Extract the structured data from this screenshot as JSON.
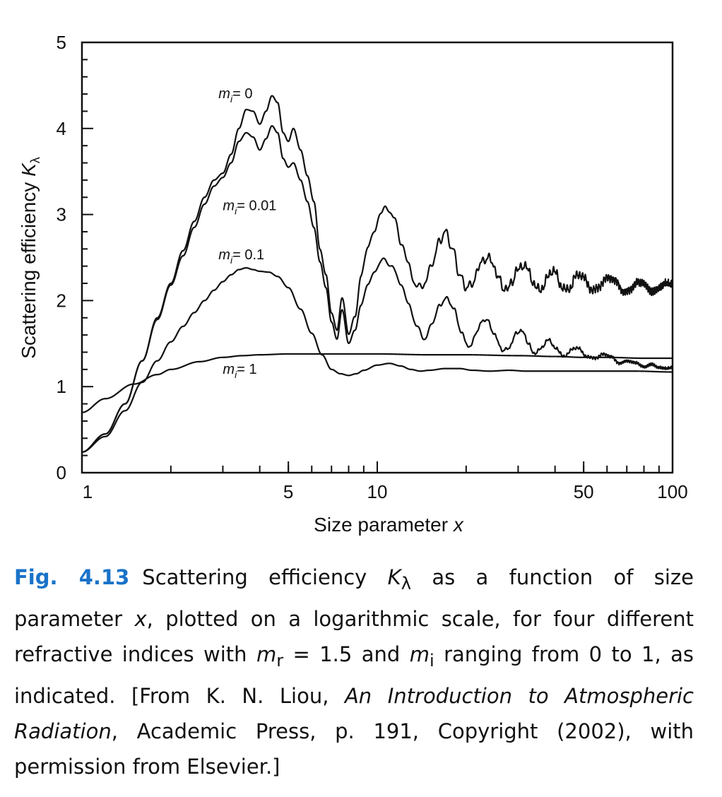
{
  "chart_data": {
    "type": "line",
    "xlabel_text": "Size parameter ",
    "xlabel_var": "x",
    "ylabel_text": "Scattering efficiency ",
    "ylabel_var": "K",
    "ylabel_sub": "λ",
    "xscale": "log",
    "xlim": [
      1,
      100
    ],
    "ylim": [
      0,
      5
    ],
    "x_ticks": [
      {
        "value": 1,
        "label": "1"
      },
      {
        "value": 5,
        "label": "5"
      },
      {
        "value": 10,
        "label": "10"
      },
      {
        "value": 50,
        "label": "50"
      },
      {
        "value": 100,
        "label": "100"
      }
    ],
    "y_ticks": [
      {
        "value": 0,
        "label": "0"
      },
      {
        "value": 1,
        "label": "1"
      },
      {
        "value": 2,
        "label": "2"
      },
      {
        "value": 3,
        "label": "3"
      },
      {
        "value": 4,
        "label": "4"
      },
      {
        "value": 5,
        "label": "5"
      }
    ],
    "grid": false,
    "legend": "none",
    "series": [
      {
        "label_var": "m",
        "label_sub": "i",
        "label_value": "= 0",
        "label_at": [
          2.9,
          4.35
        ],
        "points": [
          [
            1,
            0.24
          ],
          [
            1.2,
            0.45
          ],
          [
            1.4,
            0.8
          ],
          [
            1.6,
            1.3
          ],
          [
            1.8,
            1.8
          ],
          [
            2,
            2.2
          ],
          [
            2.2,
            2.58
          ],
          [
            2.4,
            2.92
          ],
          [
            2.6,
            3.2
          ],
          [
            2.8,
            3.4
          ],
          [
            3,
            3.48
          ],
          [
            3.2,
            3.7
          ],
          [
            3.4,
            4.0
          ],
          [
            3.6,
            4.22
          ],
          [
            3.8,
            4.2
          ],
          [
            4.0,
            4.05
          ],
          [
            4.2,
            4.2
          ],
          [
            4.4,
            4.38
          ],
          [
            4.6,
            4.3
          ],
          [
            4.8,
            3.95
          ],
          [
            5.0,
            3.85
          ],
          [
            5.2,
            4.0
          ],
          [
            5.5,
            3.75
          ],
          [
            5.8,
            3.45
          ],
          [
            6.1,
            3.15
          ],
          [
            6.4,
            2.6
          ],
          [
            6.7,
            2.3
          ],
          [
            7.0,
            1.85
          ],
          [
            7.3,
            1.65
          ],
          [
            7.6,
            2.05
          ],
          [
            8.0,
            1.6
          ],
          [
            8.4,
            1.8
          ],
          [
            8.8,
            2.3
          ],
          [
            9.3,
            2.6
          ],
          [
            9.8,
            2.85
          ],
          [
            10.3,
            3.0
          ],
          [
            10.8,
            3.1
          ],
          [
            11.4,
            2.95
          ],
          [
            12.0,
            2.7
          ],
          [
            12.8,
            2.4
          ],
          [
            13.6,
            2.15
          ],
          [
            14.5,
            2.2
          ],
          [
            15.4,
            2.45
          ],
          [
            16.3,
            2.7
          ],
          [
            17.0,
            2.8
          ],
          [
            18.0,
            2.6
          ],
          [
            19.0,
            2.3
          ],
          [
            20.0,
            2.15
          ],
          [
            21.0,
            2.2
          ],
          [
            22.5,
            2.45
          ],
          [
            24,
            2.5
          ],
          [
            25.5,
            2.3
          ],
          [
            27,
            2.12
          ],
          [
            28.5,
            2.2
          ],
          [
            30,
            2.38
          ],
          [
            32,
            2.4
          ],
          [
            34,
            2.18
          ],
          [
            36,
            2.12
          ],
          [
            38,
            2.3
          ],
          [
            40,
            2.35
          ],
          [
            42,
            2.15
          ],
          [
            45,
            2.13
          ],
          [
            47,
            2.3
          ],
          [
            50,
            2.28
          ],
          [
            53,
            2.12
          ],
          [
            56,
            2.15
          ],
          [
            60,
            2.27
          ],
          [
            64,
            2.24
          ],
          [
            68,
            2.1
          ],
          [
            72,
            2.13
          ],
          [
            76,
            2.22
          ],
          [
            80,
            2.2
          ],
          [
            85,
            2.1
          ],
          [
            90,
            2.14
          ],
          [
            95,
            2.2
          ],
          [
            100,
            2.18
          ]
        ],
        "ripple": 0.035
      },
      {
        "label_var": "m",
        "label_sub": "i",
        "label_value": "= 0.01",
        "label_at": [
          3.0,
          3.05
        ],
        "points": [
          [
            1,
            0.24
          ],
          [
            1.2,
            0.45
          ],
          [
            1.4,
            0.8
          ],
          [
            1.6,
            1.3
          ],
          [
            1.8,
            1.78
          ],
          [
            2,
            2.18
          ],
          [
            2.2,
            2.52
          ],
          [
            2.4,
            2.85
          ],
          [
            2.6,
            3.12
          ],
          [
            2.8,
            3.33
          ],
          [
            3,
            3.43
          ],
          [
            3.2,
            3.6
          ],
          [
            3.4,
            3.85
          ],
          [
            3.6,
            3.95
          ],
          [
            3.8,
            3.9
          ],
          [
            4.0,
            3.75
          ],
          [
            4.2,
            3.88
          ],
          [
            4.4,
            4.03
          ],
          [
            4.6,
            3.95
          ],
          [
            4.8,
            3.65
          ],
          [
            5.0,
            3.55
          ],
          [
            5.2,
            3.6
          ],
          [
            5.5,
            3.4
          ],
          [
            5.8,
            3.15
          ],
          [
            6.1,
            2.85
          ],
          [
            6.4,
            2.45
          ],
          [
            6.7,
            2.15
          ],
          [
            7.0,
            1.75
          ],
          [
            7.3,
            1.55
          ],
          [
            7.6,
            1.9
          ],
          [
            8.0,
            1.5
          ],
          [
            8.4,
            1.65
          ],
          [
            8.8,
            1.95
          ],
          [
            9.3,
            2.18
          ],
          [
            9.8,
            2.35
          ],
          [
            10.5,
            2.48
          ],
          [
            11.2,
            2.4
          ],
          [
            12.0,
            2.2
          ],
          [
            12.8,
            1.95
          ],
          [
            13.6,
            1.7
          ],
          [
            14.5,
            1.55
          ],
          [
            15.4,
            1.75
          ],
          [
            16.3,
            1.95
          ],
          [
            17.2,
            2.03
          ],
          [
            18.2,
            1.9
          ],
          [
            19.3,
            1.62
          ],
          [
            20.5,
            1.45
          ],
          [
            21.5,
            1.6
          ],
          [
            22.5,
            1.75
          ],
          [
            23.5,
            1.78
          ],
          [
            25,
            1.6
          ],
          [
            26.5,
            1.42
          ],
          [
            28,
            1.45
          ],
          [
            29.5,
            1.62
          ],
          [
            31,
            1.65
          ],
          [
            32.5,
            1.5
          ],
          [
            34,
            1.38
          ],
          [
            36,
            1.45
          ],
          [
            38,
            1.55
          ],
          [
            40,
            1.45
          ],
          [
            43,
            1.35
          ],
          [
            46,
            1.44
          ],
          [
            48,
            1.45
          ],
          [
            51,
            1.35
          ],
          [
            55,
            1.33
          ],
          [
            58,
            1.38
          ],
          [
            62,
            1.35
          ],
          [
            66,
            1.27
          ],
          [
            70,
            1.3
          ],
          [
            75,
            1.28
          ],
          [
            80,
            1.23
          ],
          [
            85,
            1.26
          ],
          [
            90,
            1.22
          ],
          [
            95,
            1.21
          ],
          [
            100,
            1.22
          ]
        ],
        "ripple": 0.012
      },
      {
        "label_var": "m",
        "label_sub": "i",
        "label_value": "= 0.1",
        "label_at": [
          2.9,
          2.48
        ],
        "points": [
          [
            1,
            0.24
          ],
          [
            1.2,
            0.42
          ],
          [
            1.4,
            0.72
          ],
          [
            1.6,
            1.05
          ],
          [
            1.8,
            1.3
          ],
          [
            2,
            1.52
          ],
          [
            2.2,
            1.7
          ],
          [
            2.4,
            1.86
          ],
          [
            2.6,
            2.0
          ],
          [
            2.8,
            2.12
          ],
          [
            3,
            2.22
          ],
          [
            3.2,
            2.3
          ],
          [
            3.4,
            2.36
          ],
          [
            3.6,
            2.38
          ],
          [
            3.8,
            2.36
          ],
          [
            4.0,
            2.34
          ],
          [
            4.3,
            2.33
          ],
          [
            4.6,
            2.28
          ],
          [
            5.0,
            2.15
          ],
          [
            5.5,
            1.9
          ],
          [
            6.0,
            1.62
          ],
          [
            6.5,
            1.37
          ],
          [
            7.0,
            1.2
          ],
          [
            7.5,
            1.15
          ],
          [
            8.0,
            1.13
          ],
          [
            8.5,
            1.15
          ],
          [
            9.0,
            1.19
          ],
          [
            10,
            1.25
          ],
          [
            11,
            1.27
          ],
          [
            12,
            1.24
          ],
          [
            13,
            1.2
          ],
          [
            14,
            1.18
          ],
          [
            15,
            1.19
          ],
          [
            17,
            1.21
          ],
          [
            19,
            1.21
          ],
          [
            21,
            1.19
          ],
          [
            24,
            1.18
          ],
          [
            28,
            1.19
          ],
          [
            32,
            1.18
          ],
          [
            40,
            1.18
          ],
          [
            50,
            1.18
          ],
          [
            60,
            1.18
          ],
          [
            75,
            1.18
          ],
          [
            100,
            1.17
          ]
        ],
        "ripple": 0
      },
      {
        "label_var": "m",
        "label_sub": "i",
        "label_value": "= 1",
        "label_at": [
          3.0,
          1.15
        ],
        "points": [
          [
            1,
            0.7
          ],
          [
            1.2,
            0.86
          ],
          [
            1.5,
            1.03
          ],
          [
            1.8,
            1.14
          ],
          [
            2,
            1.2
          ],
          [
            2.5,
            1.29
          ],
          [
            3,
            1.34
          ],
          [
            3.5,
            1.36
          ],
          [
            4,
            1.37
          ],
          [
            5,
            1.38
          ],
          [
            6,
            1.38
          ],
          [
            8,
            1.38
          ],
          [
            10,
            1.38
          ],
          [
            15,
            1.37
          ],
          [
            20,
            1.37
          ],
          [
            30,
            1.36
          ],
          [
            40,
            1.35
          ],
          [
            50,
            1.34
          ],
          [
            60,
            1.34
          ],
          [
            80,
            1.33
          ],
          [
            100,
            1.33
          ]
        ],
        "ripple": 0
      }
    ]
  },
  "caption": {
    "fig_label": "Fig. 4.13",
    "t1": "Scattering efficiency ",
    "t1_var": "K",
    "t1_sub": "λ",
    "t2": " as a function of size parameter ",
    "t2_var": "x",
    "t3": ", plotted on a logarithmic scale, for four different refractive indices with ",
    "t3_var": "m",
    "t3_sub": "r",
    "t4": " = 1.5 and ",
    "t4_var": "m",
    "t4_sub": "i",
    "t5": " ranging from 0 to 1, as indicated. [From K. N. Liou, ",
    "book_title": "An Introduction to Atmospheric Radiation",
    "t6": ", Academic Press, p. 191, Copyright (2002), with permission from Elsevier.]"
  }
}
